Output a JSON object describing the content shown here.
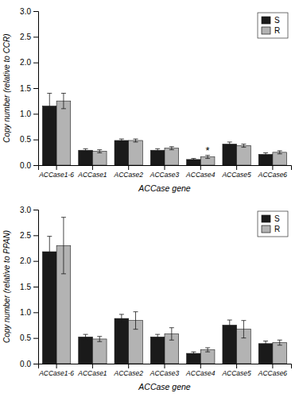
{
  "chart_data": [
    {
      "type": "bar",
      "categories": [
        "ACCase1-6",
        "ACCase1",
        "ACCase2",
        "ACCase3",
        "ACCase4",
        "ACCase5",
        "ACCase6"
      ],
      "series": [
        {
          "name": "S",
          "color": "#1a1a1a",
          "values": [
            1.15,
            0.29,
            0.48,
            0.29,
            0.11,
            0.41,
            0.21
          ],
          "errors": [
            0.25,
            0.03,
            0.03,
            0.03,
            0.02,
            0.04,
            0.03
          ]
        },
        {
          "name": "R",
          "color": "#b3b3b3",
          "values": [
            1.25,
            0.27,
            0.48,
            0.33,
            0.16,
            0.38,
            0.25
          ],
          "errors": [
            0.15,
            0.03,
            0.03,
            0.03,
            0.03,
            0.03,
            0.03
          ]
        }
      ],
      "ylabel": "Copy number (relative to CCR)",
      "xlabel": "ACCase gene",
      "ylim": [
        0,
        3.0
      ],
      "yticks": [
        {
          "value": 0,
          "label": "0.0"
        },
        0.5,
        {
          "value": 1,
          "label": "1.0"
        },
        1.5,
        {
          "value": 2,
          "label": "2.0"
        },
        2.5,
        {
          "value": 3,
          "label": "3.0"
        }
      ],
      "annotations": [
        {
          "text": "*",
          "category": "ACCase4",
          "series": "R"
        }
      ],
      "legend": "upper right",
      "grid": false
    },
    {
      "type": "bar",
      "categories": [
        "ACCase1-6",
        "ACCase1",
        "ACCase2",
        "ACCase3",
        "ACCase4",
        "ACCase5",
        "ACCase6"
      ],
      "series": [
        {
          "name": "S",
          "color": "#1a1a1a",
          "values": [
            2.18,
            0.52,
            0.88,
            0.52,
            0.2,
            0.75,
            0.39
          ],
          "errors": [
            0.3,
            0.05,
            0.08,
            0.05,
            0.03,
            0.1,
            0.05
          ]
        },
        {
          "name": "R",
          "color": "#b3b3b3",
          "values": [
            2.3,
            0.48,
            0.84,
            0.58,
            0.27,
            0.67,
            0.41
          ],
          "errors": [
            0.55,
            0.05,
            0.17,
            0.12,
            0.04,
            0.17,
            0.05
          ]
        }
      ],
      "ylabel": "Copy number (relative to PPAN)",
      "xlabel": "ACCase gene",
      "ylim": [
        0,
        3.0
      ],
      "yticks": [
        {
          "value": 0,
          "label": "0.0"
        },
        0.5,
        {
          "value": 1,
          "label": "1.0"
        },
        1.5,
        {
          "value": 2,
          "label": "2.0"
        },
        2.5,
        {
          "value": 3,
          "label": "3.0"
        }
      ],
      "legend": "upper right",
      "grid": false
    }
  ]
}
